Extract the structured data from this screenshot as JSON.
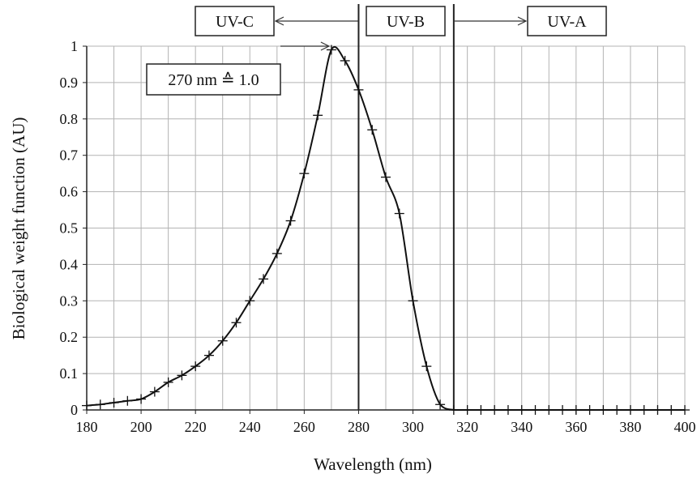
{
  "chart_data": {
    "type": "line",
    "title": "",
    "xlabel": "Wavelength (nm)",
    "ylabel": "Biological  weight  function  (AU)",
    "xlim": [
      180,
      400
    ],
    "ylim": [
      0,
      1.0
    ],
    "x_ticks": [
      180,
      200,
      220,
      240,
      260,
      280,
      300,
      320,
      340,
      360,
      380,
      400
    ],
    "y_ticks": [
      0,
      0.1,
      0.2,
      0.3,
      0.4,
      0.5,
      0.6,
      0.7,
      0.8,
      0.9,
      1
    ],
    "x_tick_labels": [
      "180",
      "200",
      "220",
      "240",
      "260",
      "280",
      "300",
      "320",
      "340",
      "360",
      "380",
      "400"
    ],
    "y_tick_labels": [
      "0",
      "0.1",
      "0.2",
      "0.3",
      "0.4",
      "0.5",
      "0.6",
      "0.7",
      "0.8",
      "0.9",
      "1"
    ],
    "grid": true,
    "legend": "none",
    "line_color": "#111111",
    "grid_color": "#b3b3b3",
    "series": [
      {
        "marker": "plus",
        "x": [
          180,
          185,
          190,
          195,
          200,
          205,
          210,
          215,
          220,
          225,
          230,
          235,
          240,
          245,
          250,
          255,
          260,
          265,
          270,
          275,
          280,
          285,
          290,
          295,
          300,
          305,
          310,
          315,
          320,
          325,
          330,
          335,
          340,
          345,
          350,
          355,
          360,
          365,
          370,
          375,
          380,
          385,
          390,
          395,
          400
        ],
        "y": [
          0.012,
          0.015,
          0.02,
          0.025,
          0.03,
          0.05,
          0.076,
          0.095,
          0.12,
          0.15,
          0.19,
          0.24,
          0.3,
          0.36,
          0.43,
          0.52,
          0.65,
          0.81,
          0.99,
          0.96,
          0.88,
          0.77,
          0.64,
          0.54,
          0.3,
          0.12,
          0.015,
          0,
          0,
          0,
          0,
          0,
          0,
          0,
          0,
          0,
          0,
          0,
          0,
          0,
          0,
          0,
          0,
          0,
          0
        ]
      }
    ],
    "band_boundaries": [
      280,
      315
    ],
    "bands": [
      {
        "label": "UV-C",
        "arrow": "left"
      },
      {
        "label": "UV-B",
        "arrow": "none"
      },
      {
        "label": "UV-A",
        "arrow": "right"
      }
    ],
    "annotation": {
      "text": "270 nm ≙ 1.0",
      "x": 270,
      "y": 1.0
    }
  }
}
